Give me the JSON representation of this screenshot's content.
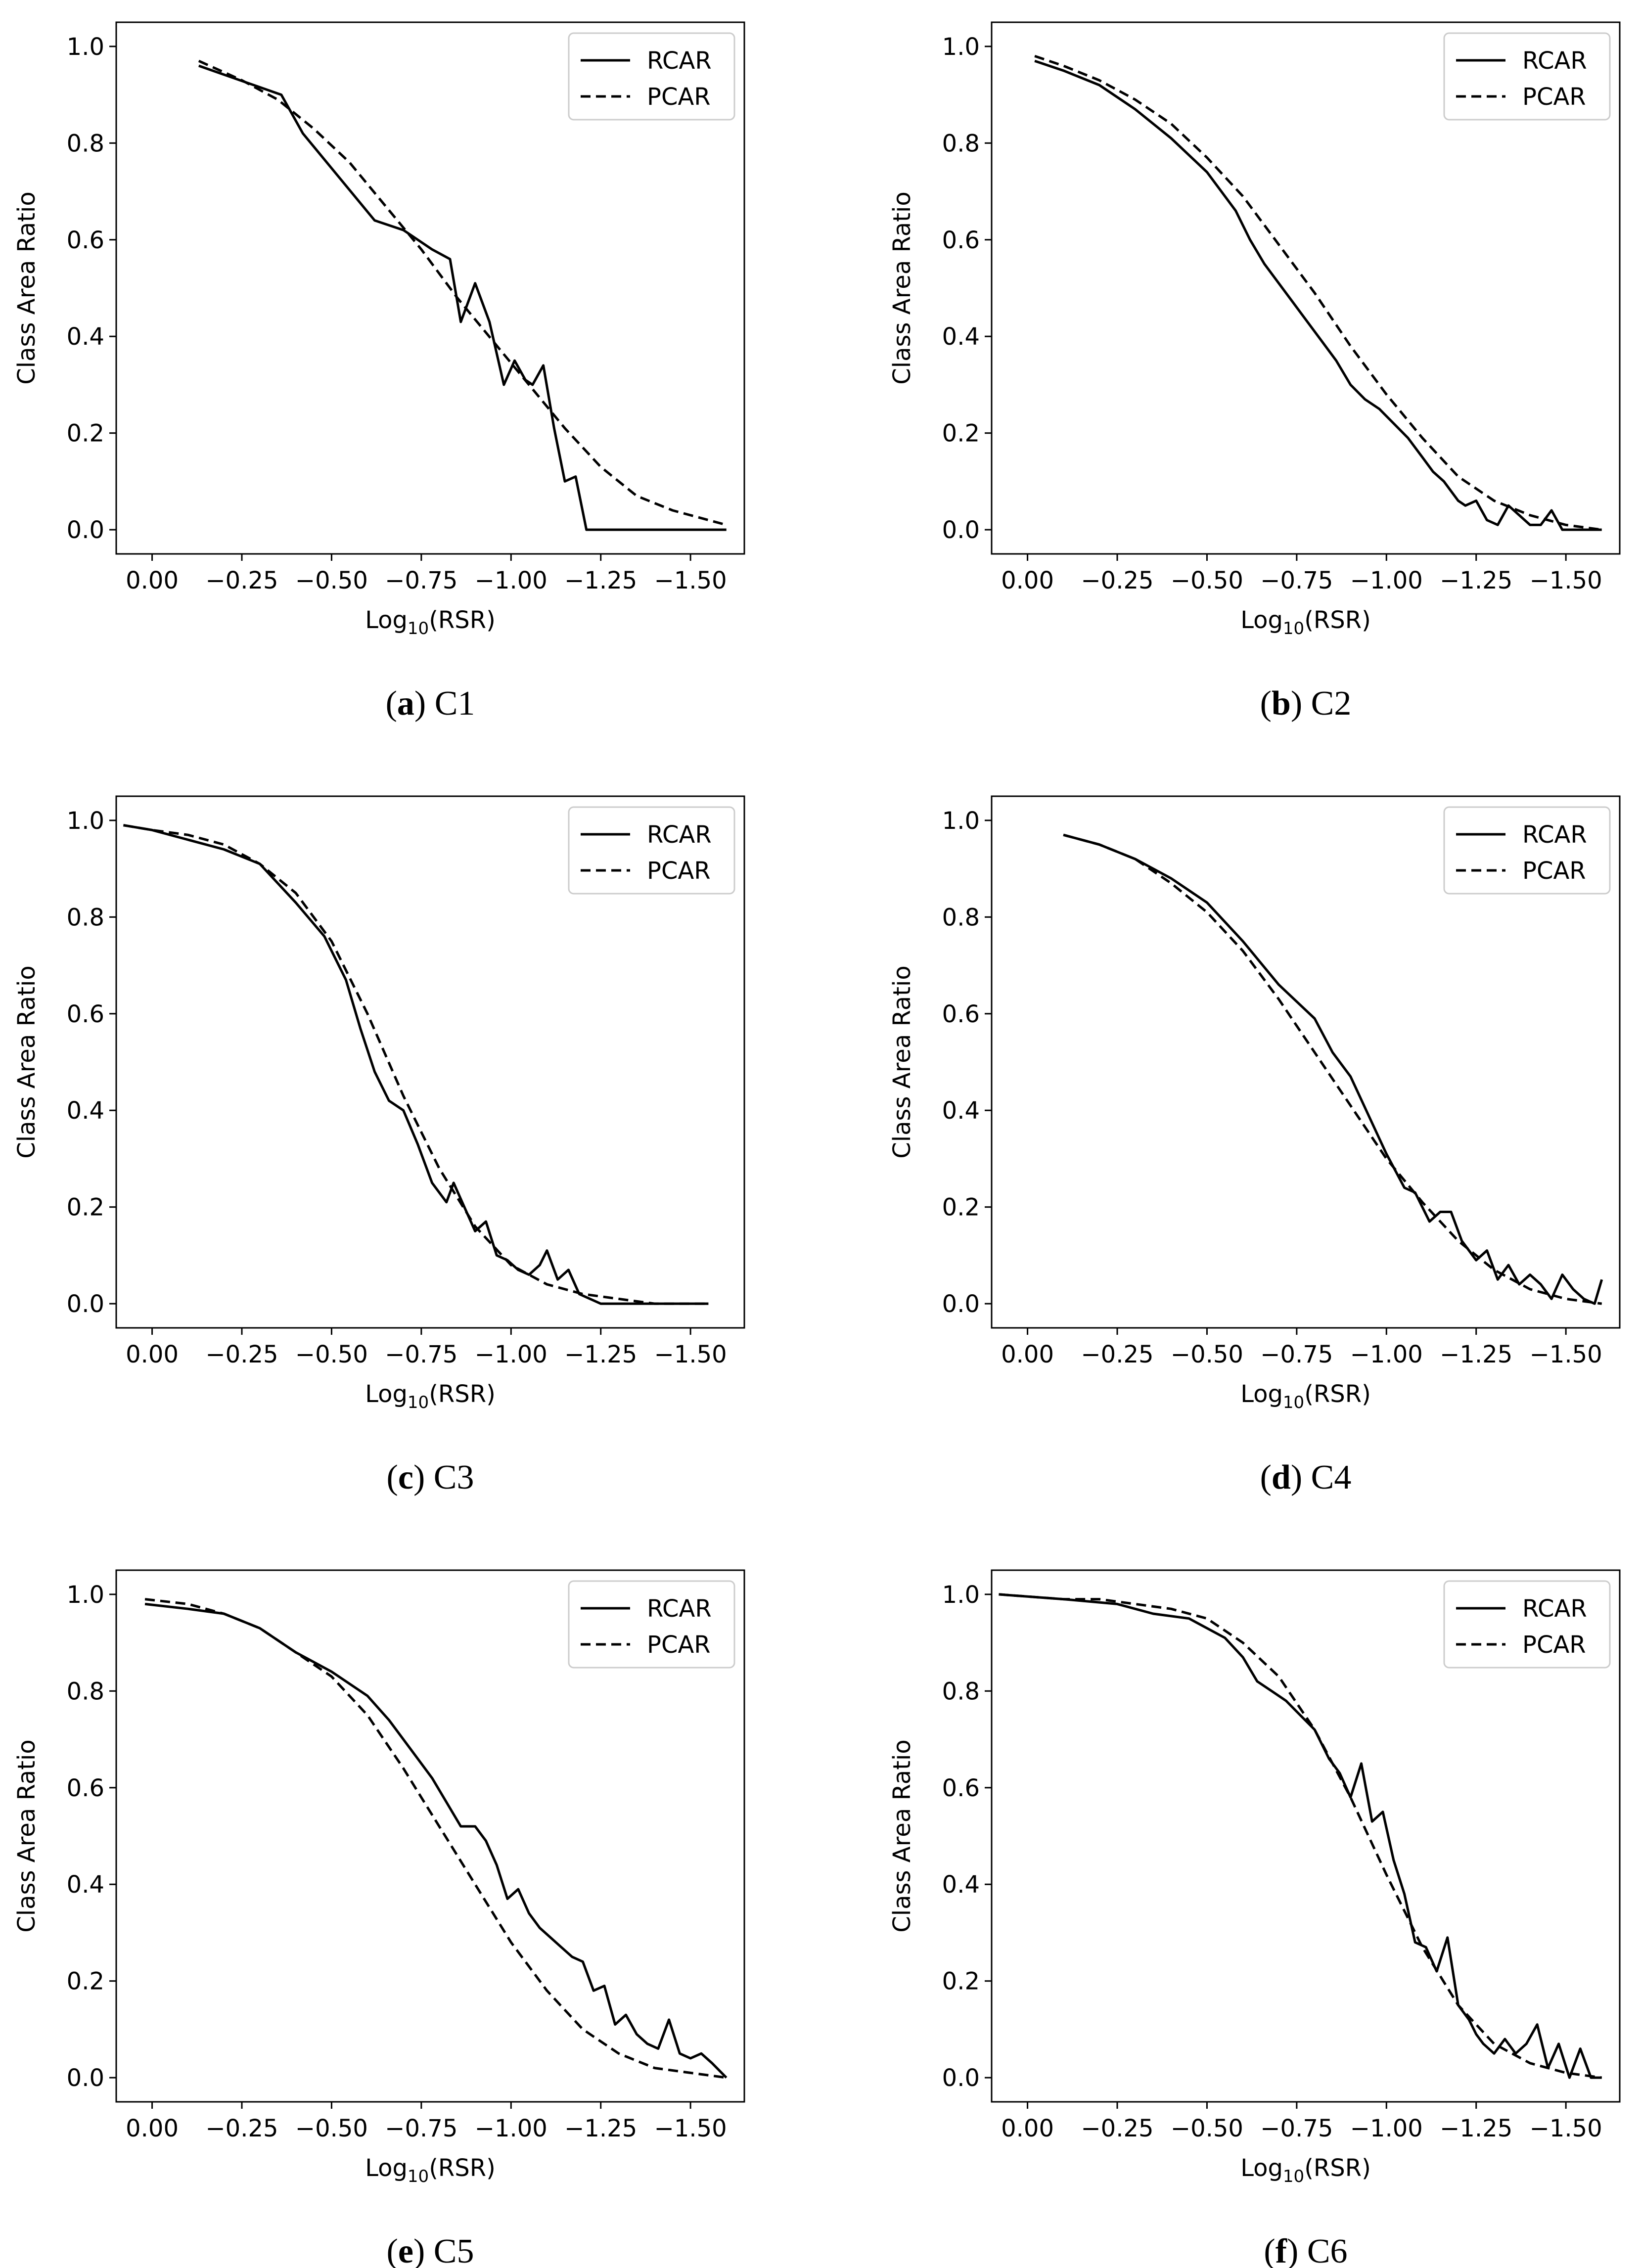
{
  "chart_data": [
    {
      "type": "line",
      "panel_letter": "a",
      "panel_name": "C1",
      "xlabel_base": "Log",
      "xlabel_sub": "10",
      "xlabel_tail": "(RSR)",
      "ylabel": "Class Area Ratio",
      "xlim": [
        0.1,
        -1.65
      ],
      "ylim": [
        -0.05,
        1.05
      ],
      "xticks": [
        0.0,
        -0.25,
        -0.5,
        -0.75,
        -1.0,
        -1.25,
        -1.5
      ],
      "xtick_labels": [
        "0.00",
        "−0.25",
        "−0.50",
        "−0.75",
        "−1.00",
        "−1.25",
        "−1.50"
      ],
      "yticks": [
        0.0,
        0.2,
        0.4,
        0.6,
        0.8,
        1.0
      ],
      "ytick_labels": [
        "0.0",
        "0.2",
        "0.4",
        "0.6",
        "0.8",
        "1.0"
      ],
      "legend_position": "top-right",
      "series": [
        {
          "name": "RCAR",
          "style": "solid",
          "x": [
            -0.13,
            -0.36,
            -0.42,
            -0.52,
            -0.62,
            -0.7,
            -0.78,
            -0.83,
            -0.86,
            -0.9,
            -0.94,
            -0.98,
            -1.01,
            -1.04,
            -1.06,
            -1.09,
            -1.12,
            -1.15,
            -1.18,
            -1.21,
            -1.23,
            -1.25,
            -1.27,
            -1.35,
            -1.45,
            -1.6
          ],
          "y": [
            0.96,
            0.9,
            0.82,
            0.73,
            0.64,
            0.62,
            0.58,
            0.56,
            0.43,
            0.51,
            0.43,
            0.3,
            0.35,
            0.31,
            0.3,
            0.34,
            0.21,
            0.1,
            0.11,
            0.0,
            0.0,
            0.0,
            0.0,
            0.0,
            0.0,
            0.0
          ]
        },
        {
          "name": "PCAR",
          "style": "dashed",
          "x": [
            -0.13,
            -0.25,
            -0.35,
            -0.45,
            -0.55,
            -0.65,
            -0.75,
            -0.85,
            -0.95,
            -1.05,
            -1.15,
            -1.25,
            -1.35,
            -1.45,
            -1.6
          ],
          "y": [
            0.97,
            0.93,
            0.89,
            0.83,
            0.76,
            0.67,
            0.58,
            0.48,
            0.39,
            0.3,
            0.21,
            0.13,
            0.07,
            0.04,
            0.01
          ]
        }
      ]
    },
    {
      "type": "line",
      "panel_letter": "b",
      "panel_name": "C2",
      "xlabel_base": "Log",
      "xlabel_sub": "10",
      "xlabel_tail": "(RSR)",
      "ylabel": "Class Area Ratio",
      "xlim": [
        0.1,
        -1.65
      ],
      "ylim": [
        -0.05,
        1.05
      ],
      "xticks": [
        0.0,
        -0.25,
        -0.5,
        -0.75,
        -1.0,
        -1.25,
        -1.5
      ],
      "xtick_labels": [
        "0.00",
        "−0.25",
        "−0.50",
        "−0.75",
        "−1.00",
        "−1.25",
        "−1.50"
      ],
      "yticks": [
        0.0,
        0.2,
        0.4,
        0.6,
        0.8,
        1.0
      ],
      "ytick_labels": [
        "0.0",
        "0.2",
        "0.4",
        "0.6",
        "0.8",
        "1.0"
      ],
      "legend_position": "top-right",
      "series": [
        {
          "name": "RCAR",
          "style": "solid",
          "x": [
            -0.02,
            -0.1,
            -0.2,
            -0.3,
            -0.4,
            -0.5,
            -0.58,
            -0.62,
            -0.66,
            -0.7,
            -0.74,
            -0.78,
            -0.82,
            -0.86,
            -0.9,
            -0.94,
            -0.98,
            -1.02,
            -1.06,
            -1.1,
            -1.13,
            -1.16,
            -1.18,
            -1.2,
            -1.22,
            -1.25,
            -1.28,
            -1.31,
            -1.34,
            -1.37,
            -1.4,
            -1.43,
            -1.46,
            -1.49,
            -1.52,
            -1.55,
            -1.6
          ],
          "y": [
            0.97,
            0.95,
            0.92,
            0.87,
            0.81,
            0.74,
            0.66,
            0.6,
            0.55,
            0.51,
            0.47,
            0.43,
            0.39,
            0.35,
            0.3,
            0.27,
            0.25,
            0.22,
            0.19,
            0.15,
            0.12,
            0.1,
            0.08,
            0.06,
            0.05,
            0.06,
            0.02,
            0.01,
            0.05,
            0.03,
            0.01,
            0.01,
            0.04,
            0.0,
            0.0,
            0.0,
            0.0
          ]
        },
        {
          "name": "PCAR",
          "style": "dashed",
          "x": [
            -0.02,
            -0.1,
            -0.2,
            -0.3,
            -0.4,
            -0.5,
            -0.6,
            -0.7,
            -0.8,
            -0.9,
            -1.0,
            -1.1,
            -1.2,
            -1.3,
            -1.4,
            -1.5,
            -1.6
          ],
          "y": [
            0.98,
            0.96,
            0.93,
            0.89,
            0.84,
            0.77,
            0.69,
            0.59,
            0.49,
            0.38,
            0.28,
            0.19,
            0.11,
            0.06,
            0.03,
            0.01,
            0.0
          ]
        }
      ]
    },
    {
      "type": "line",
      "panel_letter": "c",
      "panel_name": "C3",
      "xlabel_base": "Log",
      "xlabel_sub": "10",
      "xlabel_tail": "(RSR)",
      "ylabel": "Class Area Ratio",
      "xlim": [
        0.1,
        -1.65
      ],
      "ylim": [
        -0.05,
        1.05
      ],
      "xticks": [
        0.0,
        -0.25,
        -0.5,
        -0.75,
        -1.0,
        -1.25,
        -1.5
      ],
      "xtick_labels": [
        "0.00",
        "−0.25",
        "−0.50",
        "−0.75",
        "−1.00",
        "−1.25",
        "−1.50"
      ],
      "yticks": [
        0.0,
        0.2,
        0.4,
        0.6,
        0.8,
        1.0
      ],
      "ytick_labels": [
        "0.0",
        "0.2",
        "0.4",
        "0.6",
        "0.8",
        "1.0"
      ],
      "legend_position": "top-right",
      "series": [
        {
          "name": "RCAR",
          "style": "solid",
          "x": [
            0.08,
            0.0,
            -0.1,
            -0.2,
            -0.3,
            -0.4,
            -0.48,
            -0.54,
            -0.58,
            -0.62,
            -0.66,
            -0.7,
            -0.74,
            -0.78,
            -0.82,
            -0.84,
            -0.87,
            -0.9,
            -0.93,
            -0.96,
            -0.99,
            -1.02,
            -1.05,
            -1.08,
            -1.1,
            -1.13,
            -1.16,
            -1.19,
            -1.25,
            -1.35,
            -1.45,
            -1.55
          ],
          "y": [
            0.99,
            0.98,
            0.96,
            0.94,
            0.91,
            0.83,
            0.76,
            0.67,
            0.57,
            0.48,
            0.42,
            0.4,
            0.33,
            0.25,
            0.21,
            0.25,
            0.2,
            0.15,
            0.17,
            0.1,
            0.09,
            0.07,
            0.06,
            0.08,
            0.11,
            0.05,
            0.07,
            0.02,
            0.0,
            0.0,
            0.0,
            0.0
          ]
        },
        {
          "name": "PCAR",
          "style": "dashed",
          "x": [
            0.08,
            0.0,
            -0.1,
            -0.2,
            -0.3,
            -0.4,
            -0.5,
            -0.6,
            -0.7,
            -0.8,
            -0.9,
            -1.0,
            -1.1,
            -1.2,
            -1.3,
            -1.4,
            -1.55
          ],
          "y": [
            0.99,
            0.98,
            0.97,
            0.95,
            0.91,
            0.85,
            0.75,
            0.6,
            0.43,
            0.28,
            0.16,
            0.08,
            0.04,
            0.02,
            0.01,
            0.0,
            0.0
          ]
        }
      ]
    },
    {
      "type": "line",
      "panel_letter": "d",
      "panel_name": "C4",
      "xlabel_base": "Log",
      "xlabel_sub": "10",
      "xlabel_tail": "(RSR)",
      "ylabel": "Class Area Ratio",
      "xlim": [
        0.1,
        -1.65
      ],
      "ylim": [
        -0.05,
        1.05
      ],
      "xticks": [
        0.0,
        -0.25,
        -0.5,
        -0.75,
        -1.0,
        -1.25,
        -1.5
      ],
      "xtick_labels": [
        "0.00",
        "−0.25",
        "−0.50",
        "−0.75",
        "−1.00",
        "−1.25",
        "−1.50"
      ],
      "yticks": [
        0.0,
        0.2,
        0.4,
        0.6,
        0.8,
        1.0
      ],
      "ytick_labels": [
        "0.0",
        "0.2",
        "0.4",
        "0.6",
        "0.8",
        "1.0"
      ],
      "legend_position": "top-right",
      "series": [
        {
          "name": "RCAR",
          "style": "solid",
          "x": [
            -0.1,
            -0.2,
            -0.3,
            -0.4,
            -0.5,
            -0.6,
            -0.7,
            -0.8,
            -0.85,
            -0.9,
            -0.95,
            -1.0,
            -1.05,
            -1.08,
            -1.12,
            -1.15,
            -1.18,
            -1.21,
            -1.25,
            -1.28,
            -1.31,
            -1.34,
            -1.37,
            -1.4,
            -1.43,
            -1.46,
            -1.49,
            -1.52,
            -1.55,
            -1.58,
            -1.6
          ],
          "y": [
            0.97,
            0.95,
            0.92,
            0.88,
            0.83,
            0.75,
            0.66,
            0.59,
            0.52,
            0.47,
            0.39,
            0.31,
            0.24,
            0.23,
            0.17,
            0.19,
            0.19,
            0.13,
            0.09,
            0.11,
            0.05,
            0.08,
            0.04,
            0.06,
            0.04,
            0.01,
            0.06,
            0.03,
            0.01,
            0.0,
            0.05
          ]
        },
        {
          "name": "PCAR",
          "style": "dashed",
          "x": [
            -0.1,
            -0.2,
            -0.3,
            -0.4,
            -0.5,
            -0.6,
            -0.7,
            -0.8,
            -0.9,
            -1.0,
            -1.1,
            -1.2,
            -1.3,
            -1.4,
            -1.5,
            -1.6
          ],
          "y": [
            0.97,
            0.95,
            0.92,
            0.87,
            0.81,
            0.73,
            0.63,
            0.52,
            0.41,
            0.3,
            0.21,
            0.13,
            0.07,
            0.03,
            0.01,
            0.0
          ]
        }
      ]
    },
    {
      "type": "line",
      "panel_letter": "e",
      "panel_name": "C5",
      "xlabel_base": "Log",
      "xlabel_sub": "10",
      "xlabel_tail": "(RSR)",
      "ylabel": "Class Area Ratio",
      "xlim": [
        0.1,
        -1.65
      ],
      "ylim": [
        -0.05,
        1.05
      ],
      "xticks": [
        0.0,
        -0.25,
        -0.5,
        -0.75,
        -1.0,
        -1.25,
        -1.5
      ],
      "xtick_labels": [
        "0.00",
        "−0.25",
        "−0.50",
        "−0.75",
        "−1.00",
        "−1.25",
        "−1.50"
      ],
      "yticks": [
        0.0,
        0.2,
        0.4,
        0.6,
        0.8,
        1.0
      ],
      "ytick_labels": [
        "0.0",
        "0.2",
        "0.4",
        "0.6",
        "0.8",
        "1.0"
      ],
      "legend_position": "top-right",
      "series": [
        {
          "name": "RCAR",
          "style": "solid",
          "x": [
            0.02,
            -0.1,
            -0.2,
            -0.3,
            -0.4,
            -0.5,
            -0.6,
            -0.66,
            -0.72,
            -0.78,
            -0.82,
            -0.86,
            -0.9,
            -0.93,
            -0.96,
            -0.99,
            -1.02,
            -1.05,
            -1.08,
            -1.11,
            -1.14,
            -1.17,
            -1.2,
            -1.23,
            -1.26,
            -1.29,
            -1.32,
            -1.35,
            -1.38,
            -1.41,
            -1.44,
            -1.47,
            -1.5,
            -1.53,
            -1.56,
            -1.6
          ],
          "y": [
            0.98,
            0.97,
            0.96,
            0.93,
            0.88,
            0.84,
            0.79,
            0.74,
            0.68,
            0.62,
            0.57,
            0.52,
            0.52,
            0.49,
            0.44,
            0.37,
            0.39,
            0.34,
            0.31,
            0.29,
            0.27,
            0.25,
            0.24,
            0.18,
            0.19,
            0.11,
            0.13,
            0.09,
            0.07,
            0.06,
            0.12,
            0.05,
            0.04,
            0.05,
            0.03,
            0.0
          ]
        },
        {
          "name": "PCAR",
          "style": "dashed",
          "x": [
            0.02,
            -0.1,
            -0.2,
            -0.3,
            -0.4,
            -0.5,
            -0.6,
            -0.7,
            -0.8,
            -0.9,
            -1.0,
            -1.1,
            -1.2,
            -1.3,
            -1.4,
            -1.5,
            -1.6
          ],
          "y": [
            0.99,
            0.98,
            0.96,
            0.93,
            0.88,
            0.83,
            0.75,
            0.64,
            0.52,
            0.4,
            0.28,
            0.18,
            0.1,
            0.05,
            0.02,
            0.01,
            0.0
          ]
        }
      ]
    },
    {
      "type": "line",
      "panel_letter": "f",
      "panel_name": "C6",
      "xlabel_base": "Log",
      "xlabel_sub": "10",
      "xlabel_tail": "(RSR)",
      "ylabel": "Class Area Ratio",
      "xlim": [
        0.1,
        -1.65
      ],
      "ylim": [
        -0.05,
        1.05
      ],
      "xticks": [
        0.0,
        -0.25,
        -0.5,
        -0.75,
        -1.0,
        -1.25,
        -1.5
      ],
      "xtick_labels": [
        "0.00",
        "−0.25",
        "−0.50",
        "−0.75",
        "−1.00",
        "−1.25",
        "−1.50"
      ],
      "yticks": [
        0.0,
        0.2,
        0.4,
        0.6,
        0.8,
        1.0
      ],
      "ytick_labels": [
        "0.0",
        "0.2",
        "0.4",
        "0.6",
        "0.8",
        "1.0"
      ],
      "legend_position": "top-right",
      "series": [
        {
          "name": "RCAR",
          "style": "solid",
          "x": [
            0.08,
            -0.1,
            -0.25,
            -0.35,
            -0.45,
            -0.55,
            -0.6,
            -0.64,
            -0.68,
            -0.72,
            -0.76,
            -0.8,
            -0.84,
            -0.87,
            -0.9,
            -0.93,
            -0.96,
            -0.99,
            -1.02,
            -1.05,
            -1.08,
            -1.11,
            -1.14,
            -1.17,
            -1.2,
            -1.23,
            -1.25,
            -1.27,
            -1.3,
            -1.33,
            -1.36,
            -1.39,
            -1.42,
            -1.45,
            -1.48,
            -1.51,
            -1.54,
            -1.57,
            -1.6
          ],
          "y": [
            1.0,
            0.99,
            0.98,
            0.96,
            0.95,
            0.91,
            0.87,
            0.82,
            0.8,
            0.78,
            0.75,
            0.72,
            0.66,
            0.63,
            0.58,
            0.65,
            0.53,
            0.55,
            0.45,
            0.38,
            0.28,
            0.27,
            0.22,
            0.29,
            0.15,
            0.12,
            0.09,
            0.07,
            0.05,
            0.08,
            0.05,
            0.07,
            0.11,
            0.02,
            0.07,
            0.0,
            0.06,
            0.0,
            0.0
          ]
        },
        {
          "name": "PCAR",
          "style": "dashed",
          "x": [
            0.08,
            -0.1,
            -0.2,
            -0.3,
            -0.4,
            -0.5,
            -0.6,
            -0.7,
            -0.8,
            -0.9,
            -1.0,
            -1.1,
            -1.2,
            -1.3,
            -1.4,
            -1.5,
            -1.6
          ],
          "y": [
            1.0,
            0.99,
            0.99,
            0.98,
            0.97,
            0.95,
            0.9,
            0.83,
            0.72,
            0.58,
            0.42,
            0.27,
            0.15,
            0.07,
            0.03,
            0.01,
            0.0
          ]
        }
      ]
    }
  ]
}
